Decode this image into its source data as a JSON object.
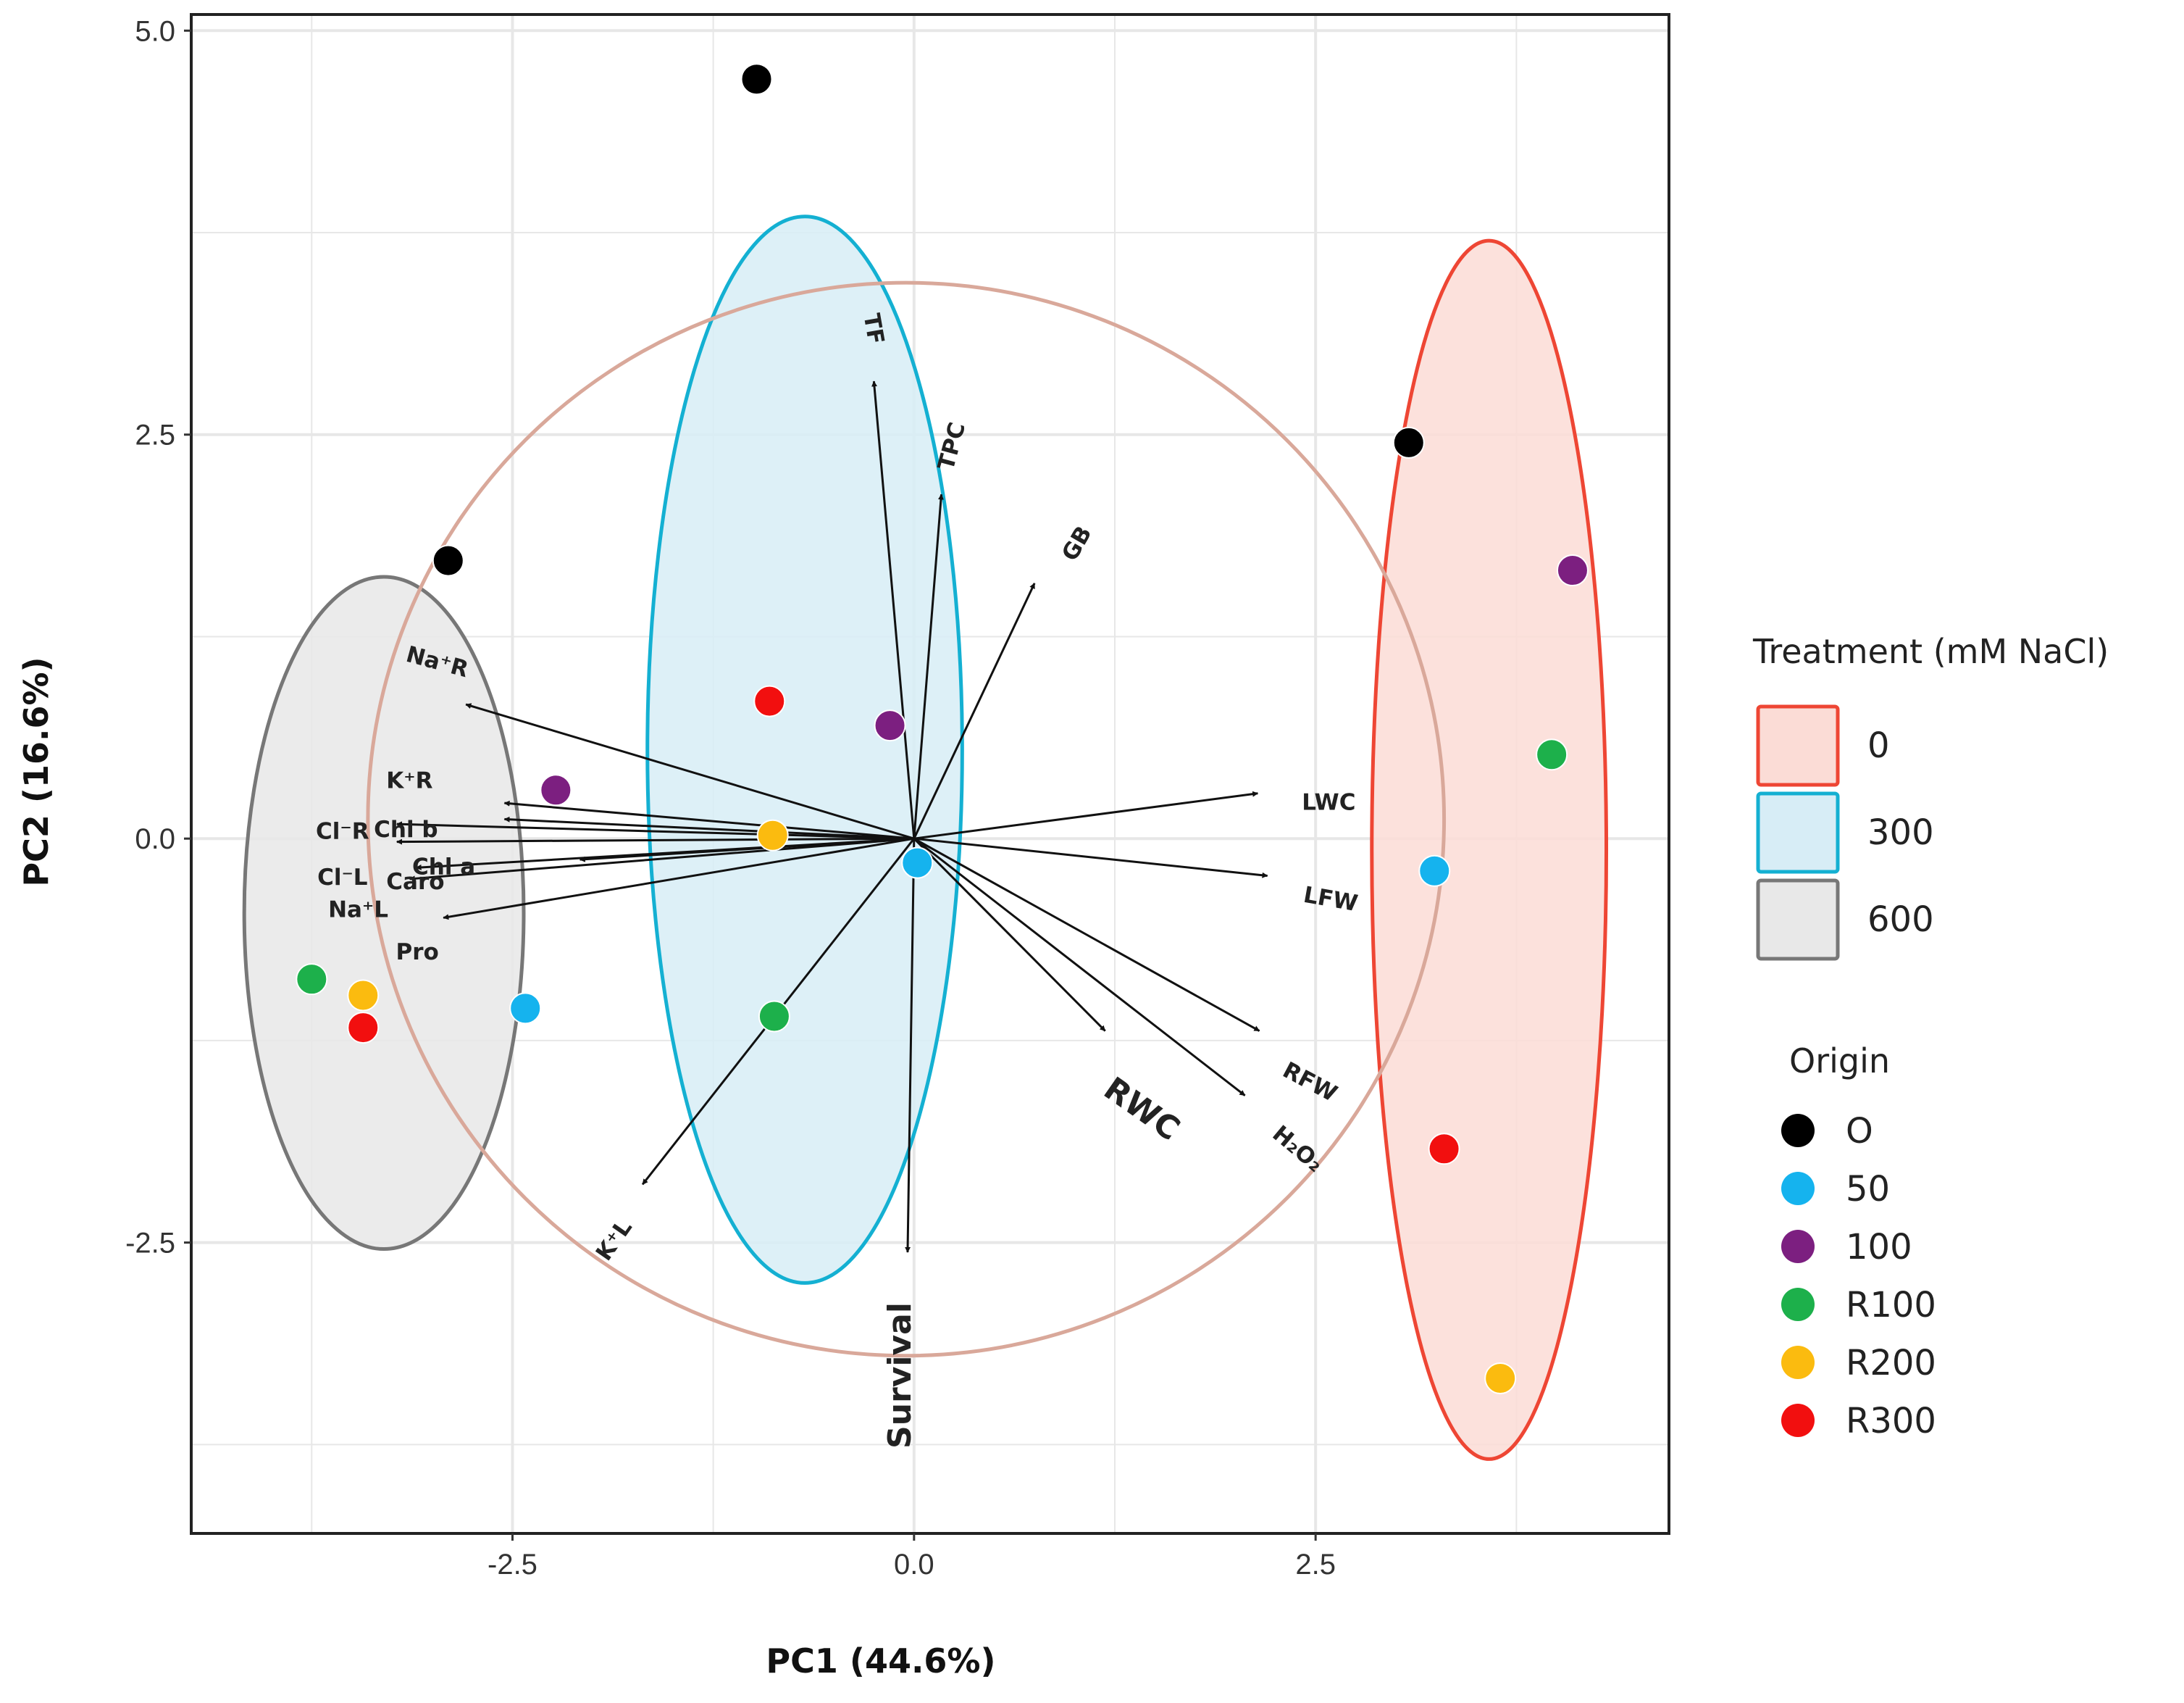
{
  "chart_data": {
    "type": "scatter",
    "subtype": "PCA biplot",
    "xlabel": "PC1 (44.6%)",
    "ylabel": "PC2 (16.6%)",
    "xlim": [
      -4.5,
      4.7
    ],
    "ylim": [
      -4.3,
      5.1
    ],
    "xticks": [
      -2.5,
      0.0,
      2.5
    ],
    "xtick_labels": [
      "-2.5",
      "0.0",
      "2.5"
    ],
    "yticks": [
      -2.5,
      0.0,
      2.5,
      5.0
    ],
    "ytick_labels": [
      "-2.5",
      "0.0",
      "2.5",
      "5.0"
    ],
    "grid": true,
    "correlation_circle": {
      "cx": -0.05,
      "cy": 0.12,
      "rx": 3.35,
      "ry": 3.32,
      "color": "#d9a89a"
    },
    "loadings": [
      {
        "name": "TF",
        "x": -0.25,
        "y": 2.83
      },
      {
        "name": "TPC",
        "x": 0.17,
        "y": 2.13
      },
      {
        "name": "GB",
        "x": 0.75,
        "y": 1.58
      },
      {
        "name": "Na⁺R",
        "x": -2.79,
        "y": 0.83
      },
      {
        "name": "K⁺R",
        "x": -2.55,
        "y": 0.22
      },
      {
        "name": "Chl b",
        "x": -2.55,
        "y": 0.12
      },
      {
        "name": "Cl⁻R",
        "x": -3.22,
        "y": 0.09
      },
      {
        "name": "Cl⁻L",
        "x": -3.22,
        "y": -0.02
      },
      {
        "name": "Chl a",
        "x": -2.08,
        "y": -0.13
      },
      {
        "name": "Caro",
        "x": -3.1,
        "y": -0.18
      },
      {
        "name": "Na⁺L",
        "x": -3.14,
        "y": -0.25
      },
      {
        "name": "Pro",
        "x": -2.93,
        "y": -0.49
      },
      {
        "name": "LWC",
        "x": 2.14,
        "y": 0.28
      },
      {
        "name": "LFW",
        "x": 2.2,
        "y": -0.23
      },
      {
        "name": "RFW",
        "x": 2.15,
        "y": -1.19
      },
      {
        "name": "RWC",
        "x": 1.19,
        "y": -1.19
      },
      {
        "name": "H₂O₂",
        "x": 2.06,
        "y": -1.59
      },
      {
        "name": "K⁺L",
        "x": -1.69,
        "y": -2.14
      },
      {
        "name": "Survival",
        "x": -0.04,
        "y": -2.56
      }
    ],
    "treatment_ellipses": [
      {
        "name": "0",
        "cx": 3.58,
        "cy": -0.07,
        "rx": 0.73,
        "ry": 3.77,
        "fill": "#fbdcd6",
        "stroke": "#ee4634"
      },
      {
        "name": "300",
        "cx": -0.68,
        "cy": 0.55,
        "rx": 0.98,
        "ry": 3.3,
        "fill": "#d7edf6",
        "stroke": "#14b0d2"
      },
      {
        "name": "600",
        "cx": -3.3,
        "cy": -0.46,
        "rx": 0.87,
        "ry": 2.08,
        "fill": "#e8e8e8",
        "stroke": "#777777"
      }
    ],
    "points": [
      {
        "origin": "O",
        "x": -0.98,
        "y": 4.7
      },
      {
        "origin": "O",
        "x": 3.08,
        "y": 2.45
      },
      {
        "origin": "O",
        "x": -2.9,
        "y": 1.72
      },
      {
        "origin": "100",
        "x": 4.1,
        "y": 1.66
      },
      {
        "origin": "R100",
        "x": 3.97,
        "y": 0.52
      },
      {
        "origin": "50",
        "x": 3.24,
        "y": -0.2
      },
      {
        "origin": "R300",
        "x": 3.3,
        "y": -1.92
      },
      {
        "origin": "R200",
        "x": 3.65,
        "y": -3.34
      },
      {
        "origin": "R300",
        "x": -0.9,
        "y": 0.85
      },
      {
        "origin": "100",
        "x": -0.15,
        "y": 0.7
      },
      {
        "origin": "R200",
        "x": -0.88,
        "y": 0.02
      },
      {
        "origin": "50",
        "x": 0.02,
        "y": -0.15
      },
      {
        "origin": "R100",
        "x": -0.87,
        "y": -1.1
      },
      {
        "origin": "100",
        "x": -2.23,
        "y": 0.3
      },
      {
        "origin": "R100",
        "x": -3.75,
        "y": -0.87
      },
      {
        "origin": "R200",
        "x": -3.43,
        "y": -0.97
      },
      {
        "origin": "R300",
        "x": -3.43,
        "y": -1.17
      },
      {
        "origin": "50",
        "x": -2.42,
        "y": -1.05
      }
    ],
    "legend": {
      "position": "right",
      "treatment_title": "Treatment (mM NaCl)",
      "treatment": [
        {
          "label": "0",
          "fill": "#fbdcd6",
          "stroke": "#ee4634"
        },
        {
          "label": "300",
          "fill": "#d7edf6",
          "stroke": "#14b0d2"
        },
        {
          "label": "600",
          "fill": "#e8e8e8",
          "stroke": "#777777"
        }
      ],
      "origin_title": "Origin",
      "origin": [
        {
          "label": "O",
          "color": "#000000"
        },
        {
          "label": "50",
          "color": "#15b3ee"
        },
        {
          "label": "100",
          "color": "#7c1f80"
        },
        {
          "label": "R100",
          "color": "#1db04b"
        },
        {
          "label": "R200",
          "color": "#fbbb0f"
        },
        {
          "label": "R300",
          "color": "#f20f0f"
        }
      ]
    }
  }
}
